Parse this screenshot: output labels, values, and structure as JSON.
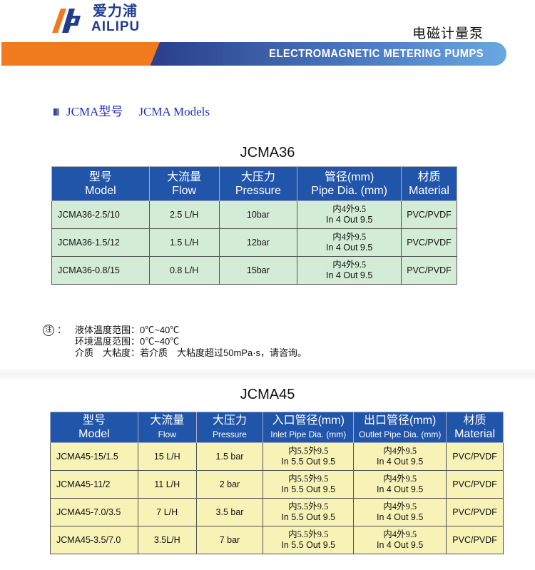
{
  "brand": {
    "name_cn": "爱力浦",
    "name_en": "AILIPU",
    "logo_colors": {
      "orange": "#f07a1e",
      "blue": "#223b8f"
    }
  },
  "header": {
    "product_cn": "电磁计量泵",
    "banner": "ELECTROMAGNETIC METERING PUMPS"
  },
  "section": {
    "heading_cn": "JCMA型号",
    "heading_en": "JCMA Models"
  },
  "table1": {
    "title": "JCMA36",
    "headers": [
      {
        "cn": "型号",
        "en": "Model"
      },
      {
        "cn": "大流量",
        "en": "Flow"
      },
      {
        "cn": "大压力",
        "en": "Pressure"
      },
      {
        "cn": "管径(mm)",
        "en": "Pipe Dia. (mm)"
      },
      {
        "cn": "材质",
        "en": "Material"
      }
    ],
    "rows": [
      {
        "model": "JCMA36-2.5/10",
        "flow": "2.5  L/H",
        "pressure": "10bar",
        "pipe_cn": "内4外9.5",
        "pipe_en": "In 4   Out 9.5",
        "material": "PVC/PVDF"
      },
      {
        "model": "JCMA36-1.5/12",
        "flow": "1.5  L/H",
        "pressure": "12bar",
        "pipe_cn": "内4外9.5",
        "pipe_en": "In 4   Out 9.5",
        "material": "PVC/PVDF"
      },
      {
        "model": "JCMA36-0.8/15",
        "flow": "0.8  L/H",
        "pressure": "15bar",
        "pipe_cn": "内4外9.5",
        "pipe_en": "In 4   Out 9.5",
        "material": "PVC/PVDF"
      }
    ]
  },
  "notes": {
    "mark": "注",
    "colon": "：",
    "lines": [
      "液体温度范围：0℃~40℃",
      "环境温度范围：0℃~40℃",
      "介质　大粘度：若介质　大粘度超过50mPa·s，请咨询。"
    ]
  },
  "table2": {
    "title": "JCMA45",
    "headers": [
      {
        "cn": "型号",
        "en": "Model"
      },
      {
        "cn": "大流量",
        "en": "Flow"
      },
      {
        "cn": "大压力",
        "en": "Pressure"
      },
      {
        "cn": "入口管径(mm)",
        "en": "Inlet Pipe Dia. (mm)"
      },
      {
        "cn": "出口管径(mm)",
        "en": "Outlet Pipe Dia. (mm)"
      },
      {
        "cn": "材质",
        "en": "Material"
      }
    ],
    "rows": [
      {
        "model": "JCMA45-15/1.5",
        "flow": "15 L/H",
        "pressure": "1.5 bar",
        "in_cn": "内5.5外9.5",
        "in_en": "In 5.5  Out 9.5",
        "out_cn": "内4外9.5",
        "out_en": "In 4  Out  9.5",
        "material": "PVC/PVDF"
      },
      {
        "model": "JCMA45-11/2",
        "flow": "11 L/H",
        "pressure": "2 bar",
        "in_cn": "内5.5外9.5",
        "in_en": "In 5.5  Out 9.5",
        "out_cn": "内4外9.5",
        "out_en": "In 4  Out  9.5",
        "material": "PVC/PVDF"
      },
      {
        "model": "JCMA45-7.0/3.5",
        "flow": "7  L/H",
        "pressure": "3.5 bar",
        "in_cn": "内5.5外9.5",
        "in_en": "In 5.5  Out 9.5",
        "out_cn": "内4外9.5",
        "out_en": "In 4  Out  9.5",
        "material": "PVC/PVDF"
      },
      {
        "model": "JCMA45-3.5/7.0",
        "flow": "3.5L/H",
        "pressure": "7 bar",
        "in_cn": "内5.5外9.5",
        "in_en": "In 5.5  Out 9.5",
        "out_cn": "内4外9.5",
        "out_en": "In 4  Out  9.5",
        "material": "PVC/PVDF"
      }
    ]
  }
}
